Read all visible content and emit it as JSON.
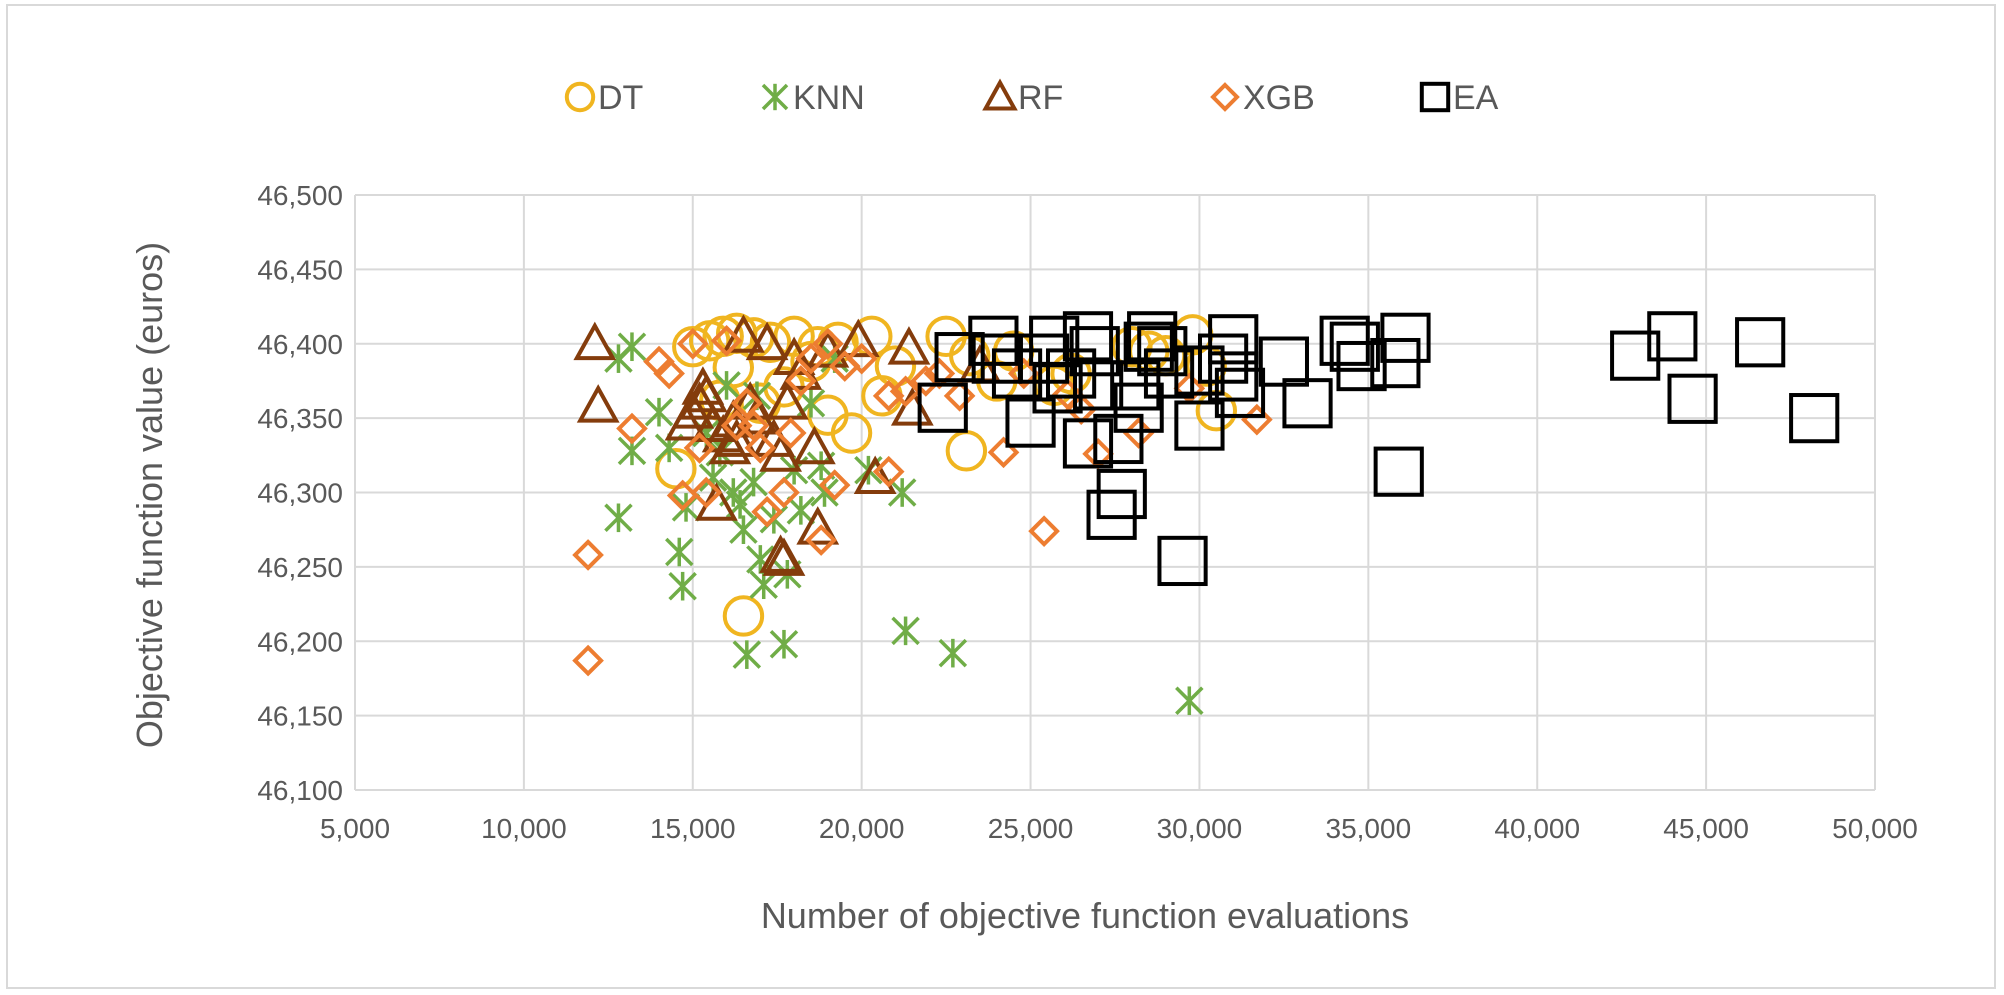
{
  "chart_data": {
    "type": "scatter",
    "title": "",
    "xlabel": "Number of objective function evaluations",
    "ylabel": "Objective function value (euros)",
    "xlim": [
      5000,
      50000
    ],
    "ylim": [
      46100,
      46500
    ],
    "x_ticks": [
      "5,000",
      "10,000",
      "15,000",
      "20,000",
      "25,000",
      "30,000",
      "35,000",
      "40,000",
      "45,000",
      "50,000"
    ],
    "y_ticks": [
      "46,100",
      "46,150",
      "46,200",
      "46,250",
      "46,300",
      "46,350",
      "46,400",
      "46,450",
      "46,500"
    ],
    "grid": true,
    "legend_position": "top",
    "series": [
      {
        "name": "DT",
        "marker": "circle",
        "color": "#f0b520",
        "points": [
          [
            15000,
            46398
          ],
          [
            15500,
            46402
          ],
          [
            15900,
            46405
          ],
          [
            16300,
            46407
          ],
          [
            16800,
            46404
          ],
          [
            17300,
            46401
          ],
          [
            18000,
            46405
          ],
          [
            18700,
            46398
          ],
          [
            19300,
            46401
          ],
          [
            20300,
            46405
          ],
          [
            22500,
            46405
          ],
          [
            23200,
            46392
          ],
          [
            24000,
            46375
          ],
          [
            25700,
            46372
          ],
          [
            28000,
            46398
          ],
          [
            28500,
            46395
          ],
          [
            29000,
            46392
          ],
          [
            29800,
            46406
          ],
          [
            30500,
            46355
          ],
          [
            14500,
            46316
          ],
          [
            16500,
            46217
          ],
          [
            19700,
            46340
          ],
          [
            23100,
            46328
          ],
          [
            20600,
            46365
          ],
          [
            15800,
            46362
          ],
          [
            17700,
            46371
          ],
          [
            16200,
            46384
          ],
          [
            18500,
            46388
          ],
          [
            21000,
            46385
          ],
          [
            24500,
            46395
          ],
          [
            26200,
            46380
          ],
          [
            30200,
            46385
          ],
          [
            17000,
            46360
          ],
          [
            19000,
            46352
          ]
        ]
      },
      {
        "name": "KNN",
        "marker": "asterisk",
        "color": "#70ad47",
        "points": [
          [
            12800,
            46390
          ],
          [
            13200,
            46398
          ],
          [
            13200,
            46328
          ],
          [
            12800,
            46283
          ],
          [
            14000,
            46354
          ],
          [
            14300,
            46330
          ],
          [
            14600,
            46260
          ],
          [
            14700,
            46237
          ],
          [
            14800,
            46290
          ],
          [
            15400,
            46340
          ],
          [
            15600,
            46310
          ],
          [
            16000,
            46372
          ],
          [
            16200,
            46300
          ],
          [
            16400,
            46292
          ],
          [
            16500,
            46275
          ],
          [
            16600,
            46191
          ],
          [
            16800,
            46307
          ],
          [
            17000,
            46255
          ],
          [
            17100,
            46238
          ],
          [
            17400,
            46282
          ],
          [
            17700,
            46198
          ],
          [
            17800,
            46245
          ],
          [
            18000,
            46315
          ],
          [
            18200,
            46288
          ],
          [
            18500,
            46360
          ],
          [
            18800,
            46318
          ],
          [
            18900,
            46300
          ],
          [
            19200,
            46390
          ],
          [
            20200,
            46315
          ],
          [
            21200,
            46300
          ],
          [
            21300,
            46207
          ],
          [
            22700,
            46192
          ],
          [
            29700,
            46160
          ],
          [
            15800,
            46327
          ],
          [
            16900,
            46365
          ]
        ]
      },
      {
        "name": "RF",
        "marker": "triangle",
        "color": "#843c0c",
        "points": [
          [
            12100,
            46400
          ],
          [
            12200,
            46358
          ],
          [
            14800,
            46346
          ],
          [
            15000,
            46354
          ],
          [
            15200,
            46360
          ],
          [
            15400,
            46365
          ],
          [
            15600,
            46345
          ],
          [
            15700,
            46292
          ],
          [
            15900,
            46338
          ],
          [
            16100,
            46330
          ],
          [
            16300,
            46335
          ],
          [
            16500,
            46405
          ],
          [
            16700,
            46360
          ],
          [
            16900,
            46350
          ],
          [
            17200,
            46400
          ],
          [
            17600,
            46325
          ],
          [
            17800,
            46360
          ],
          [
            18000,
            46390
          ],
          [
            18200,
            46380
          ],
          [
            18600,
            46330
          ],
          [
            18700,
            46276
          ],
          [
            19000,
            46395
          ],
          [
            19900,
            46402
          ],
          [
            20400,
            46310
          ],
          [
            21400,
            46397
          ],
          [
            21500,
            46356
          ],
          [
            23500,
            46385
          ],
          [
            17600,
            46257
          ],
          [
            17700,
            46255
          ],
          [
            16200,
            46348
          ],
          [
            17400,
            46335
          ],
          [
            15300,
            46370
          ]
        ]
      },
      {
        "name": "XGB",
        "marker": "diamond",
        "color": "#ed7d31",
        "points": [
          [
            11900,
            46258
          ],
          [
            11900,
            46187
          ],
          [
            13200,
            46343
          ],
          [
            14000,
            46388
          ],
          [
            14300,
            46380
          ],
          [
            14700,
            46298
          ],
          [
            15000,
            46400
          ],
          [
            15200,
            46330
          ],
          [
            15400,
            46300
          ],
          [
            16000,
            46402
          ],
          [
            16300,
            46345
          ],
          [
            16600,
            46360
          ],
          [
            17000,
            46330
          ],
          [
            17200,
            46287
          ],
          [
            17700,
            46300
          ],
          [
            17900,
            46340
          ],
          [
            18200,
            46375
          ],
          [
            18500,
            46390
          ],
          [
            18800,
            46268
          ],
          [
            19000,
            46400
          ],
          [
            19200,
            46305
          ],
          [
            19500,
            46385
          ],
          [
            20000,
            46390
          ],
          [
            20800,
            46365
          ],
          [
            21300,
            46368
          ],
          [
            21900,
            46375
          ],
          [
            22900,
            46365
          ],
          [
            24200,
            46327
          ],
          [
            25400,
            46274
          ],
          [
            26100,
            46366
          ],
          [
            26500,
            46356
          ],
          [
            27000,
            46326
          ],
          [
            28200,
            46340
          ],
          [
            29700,
            46370
          ],
          [
            31700,
            46349
          ],
          [
            20800,
            46314
          ],
          [
            16800,
            46345
          ],
          [
            22300,
            46380
          ],
          [
            24800,
            46380
          ]
        ]
      },
      {
        "name": "EA",
        "marker": "square",
        "color": "#000000",
        "points": [
          [
            22400,
            46357
          ],
          [
            22900,
            46391
          ],
          [
            23900,
            46402
          ],
          [
            24000,
            46390
          ],
          [
            24600,
            46380
          ],
          [
            25000,
            46347
          ],
          [
            25400,
            46390
          ],
          [
            25700,
            46402
          ],
          [
            25800,
            46370
          ],
          [
            26200,
            46380
          ],
          [
            26700,
            46405
          ],
          [
            26700,
            46333
          ],
          [
            26900,
            46395
          ],
          [
            27000,
            46372
          ],
          [
            27400,
            46285
          ],
          [
            27600,
            46336
          ],
          [
            27700,
            46299
          ],
          [
            28100,
            46372
          ],
          [
            28200,
            46357
          ],
          [
            28500,
            46398
          ],
          [
            28600,
            46405
          ],
          [
            28900,
            46395
          ],
          [
            29100,
            46380
          ],
          [
            29500,
            46254
          ],
          [
            30000,
            46345
          ],
          [
            30000,
            46382
          ],
          [
            30700,
            46390
          ],
          [
            31000,
            46403
          ],
          [
            31000,
            46378
          ],
          [
            31200,
            46367
          ],
          [
            32500,
            46388
          ],
          [
            33200,
            46360
          ],
          [
            34300,
            46402
          ],
          [
            34600,
            46398
          ],
          [
            34800,
            46385
          ],
          [
            35800,
            46387
          ],
          [
            35900,
            46314
          ],
          [
            36100,
            46404
          ],
          [
            42900,
            46392
          ],
          [
            44000,
            46405
          ],
          [
            44600,
            46363
          ],
          [
            46600,
            46401
          ],
          [
            48200,
            46350
          ]
        ]
      }
    ]
  }
}
